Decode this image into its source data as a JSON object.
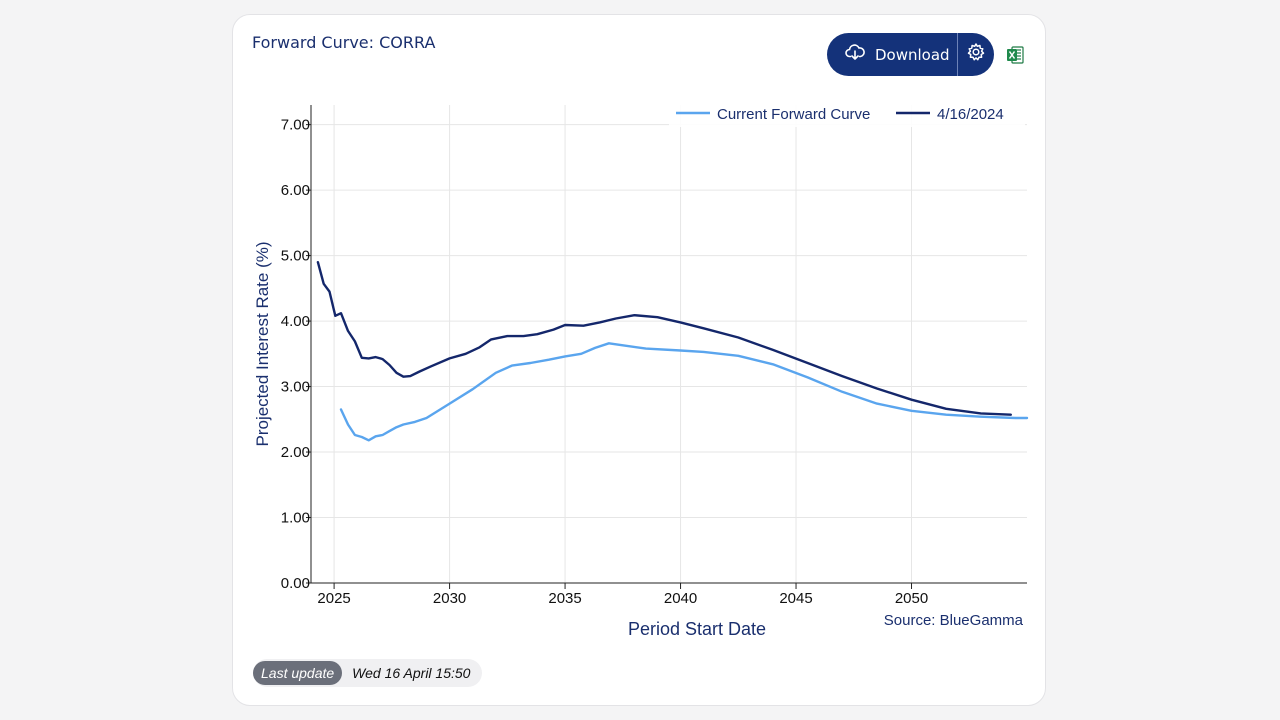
{
  "card": {
    "title": "Forward Curve: CORRA",
    "download_label": "Download",
    "download_icon": "cloud-download-icon",
    "settings_icon": "gear-icon",
    "excel_icon": "excel-icon"
  },
  "status": {
    "badge": "Last update",
    "timestamp": "Wed 16 April 15:50"
  },
  "colors": {
    "accent": "#14327a",
    "current_curve": "#5aa5ee",
    "past_curve": "#14276b"
  },
  "chart_data": {
    "type": "line",
    "title": "",
    "xlabel": "Period Start Date",
    "ylabel": "Projected Interest Rate (%)",
    "source": "Source: BlueGamma",
    "xlim": [
      2024.0,
      2055.0
    ],
    "ylim": [
      0,
      7.3
    ],
    "x_ticks": [
      2025,
      2030,
      2035,
      2040,
      2045,
      2050
    ],
    "y_ticks": [
      0,
      1,
      2,
      3,
      4,
      5,
      6,
      7
    ],
    "y_tick_labels": [
      "0.00",
      "1.00",
      "2.00",
      "3.00",
      "4.00",
      "5.00",
      "6.00",
      "7.00"
    ],
    "grid": true,
    "legend_position": "top-right",
    "series": [
      {
        "name": "Current Forward Curve",
        "color": "#5aa5ee",
        "x": [
          2025.3,
          2025.6,
          2025.9,
          2026.2,
          2026.5,
          2026.8,
          2027.1,
          2027.4,
          2027.7,
          2028.0,
          2028.5,
          2029.0,
          2030.0,
          2031.0,
          2032.0,
          2032.7,
          2033.5,
          2034.3,
          2035.0,
          2035.7,
          2036.3,
          2036.9,
          2037.5,
          2038.5,
          2040.0,
          2041.0,
          2042.5,
          2044.0,
          2045.5,
          2047.0,
          2048.5,
          2050.0,
          2051.5,
          2053.0,
          2054.5,
          2055.0
        ],
        "y": [
          2.65,
          2.42,
          2.26,
          2.23,
          2.18,
          2.24,
          2.26,
          2.32,
          2.38,
          2.42,
          2.46,
          2.52,
          2.74,
          2.96,
          3.21,
          3.32,
          3.36,
          3.41,
          3.46,
          3.5,
          3.59,
          3.66,
          3.63,
          3.58,
          3.55,
          3.53,
          3.47,
          3.34,
          3.14,
          2.92,
          2.74,
          2.63,
          2.57,
          2.54,
          2.52,
          2.52
        ]
      },
      {
        "name": "4/16/2024",
        "color": "#14276b",
        "x": [
          2024.3,
          2024.55,
          2024.8,
          2025.05,
          2025.3,
          2025.6,
          2025.9,
          2026.2,
          2026.5,
          2026.8,
          2027.1,
          2027.4,
          2027.7,
          2028.0,
          2028.3,
          2028.7,
          2029.2,
          2030.0,
          2030.7,
          2031.3,
          2031.8,
          2032.5,
          2033.2,
          2033.8,
          2034.5,
          2035.0,
          2035.8,
          2036.5,
          2037.2,
          2038.0,
          2039.0,
          2040.0,
          2041.0,
          2042.5,
          2044.0,
          2045.5,
          2047.0,
          2048.5,
          2050.0,
          2051.5,
          2053.0,
          2054.3
        ],
        "y": [
          4.9,
          4.57,
          4.45,
          4.08,
          4.12,
          3.85,
          3.69,
          3.44,
          3.43,
          3.45,
          3.42,
          3.33,
          3.21,
          3.15,
          3.16,
          3.23,
          3.31,
          3.43,
          3.5,
          3.6,
          3.72,
          3.77,
          3.77,
          3.8,
          3.87,
          3.94,
          3.93,
          3.98,
          4.04,
          4.09,
          4.06,
          3.98,
          3.89,
          3.75,
          3.56,
          3.36,
          3.16,
          2.97,
          2.8,
          2.66,
          2.59,
          2.57
        ]
      }
    ]
  }
}
